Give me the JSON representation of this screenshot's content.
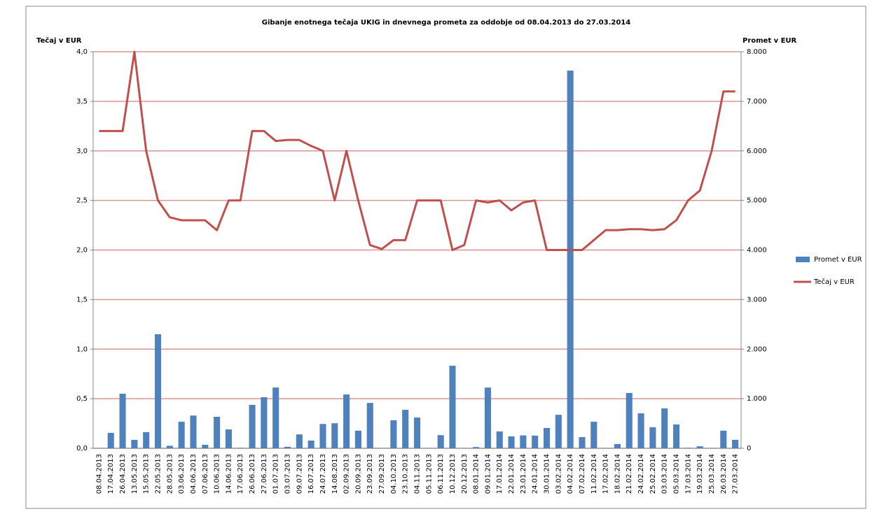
{
  "chart_data": {
    "type": "combo",
    "title": "Gibanje enotnega tečaja UKIG in dnevnega prometa za oddobje od 08.04.2013 do 27.03.2014",
    "y_label": "Tečaj v EUR",
    "y2_label": "Promet v EUR",
    "categories": [
      "08.04.2013",
      "17.04.2013",
      "26.04.2013",
      "13.05.2013",
      "15.05.2013",
      "22.05.2013",
      "28.05.2013",
      "03.06.2013",
      "04.06.2013",
      "07.06.2013",
      "10.06.2013",
      "14.06.2013",
      "17.06.2013",
      "26.06.2013",
      "27.06.2013",
      "01.07.2013",
      "03.07.2013",
      "09.07.2013",
      "16.07.2013",
      "24.07.2013",
      "14.08.2013",
      "02.09.2013",
      "20.09.2013",
      "23.09.2013",
      "27.09.2013",
      "04.10.2013",
      "23.10.2013",
      "04.11.2013",
      "05.11.2013",
      "06.11.2013",
      "10.12.2013",
      "20.12.2013",
      "08.01.2014",
      "09.01.2014",
      "17.01.2014",
      "22.01.2014",
      "23.01.2014",
      "24.01.2014",
      "30.01.2014",
      "03.02.2014",
      "04.02.2014",
      "07.02.2014",
      "11.02.2014",
      "17.02.2014",
      "18.02.2014",
      "21.02.2014",
      "24.02.2014",
      "25.02.2014",
      "03.03.2014",
      "05.03.2014",
      "17.03.2014",
      "19.03.2014",
      "25.03.2014",
      "26.03.2014",
      "27.03.2014"
    ],
    "series": [
      {
        "name": "Promet v EUR",
        "type": "bar",
        "axis": "y2",
        "color": "#4f81bd",
        "values": [
          0,
          310,
          1100,
          170,
          325,
          2300,
          50,
          535,
          660,
          70,
          635,
          380,
          10,
          875,
          1030,
          1225,
          30,
          280,
          155,
          490,
          505,
          1085,
          355,
          915,
          5,
          565,
          775,
          620,
          5,
          265,
          1665,
          5,
          25,
          1225,
          340,
          240,
          260,
          255,
          410,
          675,
          7620,
          225,
          535,
          5,
          85,
          1115,
          705,
          425,
          805,
          480,
          10,
          40,
          5,
          355,
          170
        ]
      },
      {
        "name": "Tečaj v EUR",
        "type": "line",
        "axis": "y",
        "color": "#c0504d",
        "values": [
          3.2,
          3.2,
          3.2,
          4.0,
          3.0,
          2.5,
          2.33,
          2.3,
          2.3,
          2.3,
          2.2,
          2.5,
          2.5,
          3.2,
          3.2,
          3.1,
          3.11,
          3.11,
          3.05,
          3.0,
          2.5,
          3.0,
          2.5,
          2.05,
          2.01,
          2.1,
          2.1,
          2.5,
          2.5,
          2.5,
          2.0,
          2.05,
          2.5,
          2.48,
          2.5,
          2.4,
          2.48,
          2.5,
          2.0,
          2.0,
          2.0,
          2.0,
          2.1,
          2.2,
          2.2,
          2.21,
          2.21,
          2.2,
          2.21,
          2.3,
          2.5,
          2.6,
          3.0,
          3.6,
          3.6
        ]
      }
    ],
    "ylim": [
      0,
      4
    ],
    "yticks": [
      {
        "value": 0,
        "label": "0,0"
      },
      {
        "value": 0.5,
        "label": "0,5"
      },
      {
        "value": 1,
        "label": "1,0"
      },
      {
        "value": 1.5,
        "label": "1,5"
      },
      {
        "value": 2,
        "label": "2,0"
      },
      {
        "value": 2.5,
        "label": "2,5"
      },
      {
        "value": 3,
        "label": "3,0"
      },
      {
        "value": 3.5,
        "label": "3,5"
      },
      {
        "value": 4,
        "label": "4,0"
      }
    ],
    "y2lim": [
      0,
      8000
    ],
    "y2ticks": [
      0,
      {
        "value": 1000,
        "label": "1.000"
      },
      {
        "value": 2000,
        "label": "2.000"
      },
      {
        "value": 3000,
        "label": "3.000"
      },
      {
        "value": 4000,
        "label": "4.000"
      },
      {
        "value": 5000,
        "label": "5.000"
      },
      {
        "value": 6000,
        "label": "6.000"
      },
      {
        "value": 7000,
        "label": "7.000"
      },
      {
        "value": 8000,
        "label": "8.000"
      }
    ],
    "grid": true,
    "grid_color": "#d99694",
    "legend": "right"
  }
}
